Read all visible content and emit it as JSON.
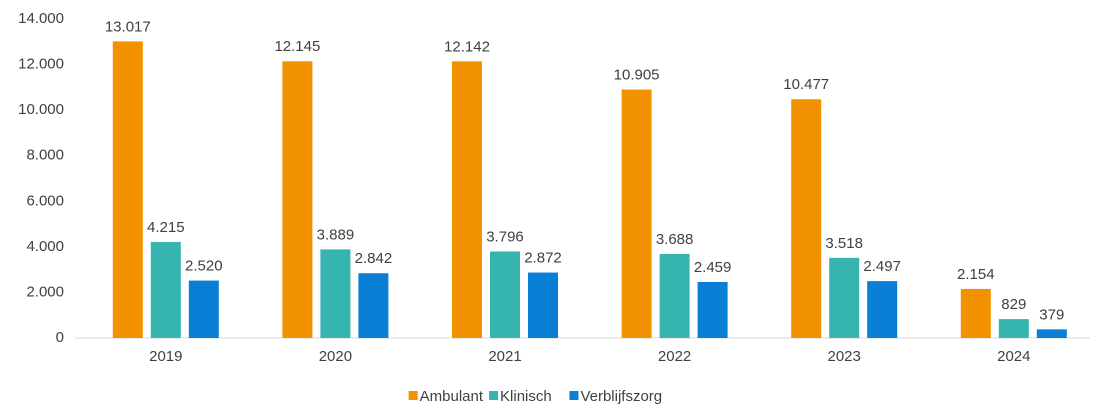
{
  "chart_data": {
    "type": "bar",
    "categories": [
      "2019",
      "2020",
      "2021",
      "2022",
      "2023",
      "2024"
    ],
    "series": [
      {
        "name": "Ambulant",
        "color": "#f39200",
        "values": [
          13017,
          12145,
          12142,
          10905,
          10477,
          2154
        ],
        "value_labels": [
          "13.017",
          "12.145",
          "12.142",
          "10.905",
          "10.477",
          "2.154"
        ]
      },
      {
        "name": "Klinisch",
        "color": "#36b5b0",
        "values": [
          4215,
          3889,
          3796,
          3688,
          3518,
          829
        ],
        "value_labels": [
          "4.215",
          "3.889",
          "3.796",
          "3.688",
          "3.518",
          "829"
        ]
      },
      {
        "name": "Verblijfszorg",
        "color": "#0a7fd6",
        "values": [
          2520,
          2842,
          2872,
          2459,
          2497,
          379
        ],
        "value_labels": [
          "2.520",
          "2.842",
          "2.872",
          "2.459",
          "2.497",
          "379"
        ]
      }
    ],
    "ylim": [
      0,
      14000
    ],
    "yticks": [
      0,
      {
        "value": 2000,
        "label": "2.000"
      },
      {
        "value": 4000,
        "label": "4.000"
      },
      {
        "value": 6000,
        "label": "6.000"
      },
      {
        "value": 8000,
        "label": "8.000"
      },
      {
        "value": 10000,
        "label": "10.000"
      },
      {
        "value": 12000,
        "label": "12.000"
      },
      {
        "value": 14000,
        "label": "14.000"
      }
    ],
    "grid": false,
    "legend": "bottom"
  }
}
